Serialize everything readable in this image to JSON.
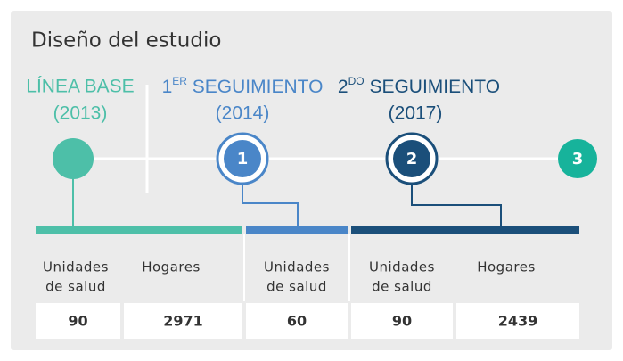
{
  "title": "Diseño del estudio",
  "phases": [
    {
      "name": "LÍNEA BASE",
      "year": "(2013)"
    },
    {
      "name": "1",
      "sup": "ER",
      "rest": " SEGUIMIENTO",
      "year": "(2014)",
      "marker": "1"
    },
    {
      "name": "2",
      "sup": "DO",
      "rest": " SEGUIMIENTO",
      "year": "(2017)",
      "marker": "2"
    },
    {
      "marker": "3"
    }
  ],
  "columns": [
    {
      "lines": [
        "Unidades",
        "de salud"
      ],
      "value": "90"
    },
    {
      "lines": [
        "Hogares"
      ],
      "value": "2971"
    },
    {
      "lines": [
        "Unidades",
        "de salud"
      ],
      "value": "60"
    },
    {
      "lines": [
        "Unidades",
        "de salud"
      ],
      "value": "90"
    },
    {
      "lines": [
        "Hogares"
      ],
      "value": "2439"
    }
  ]
}
